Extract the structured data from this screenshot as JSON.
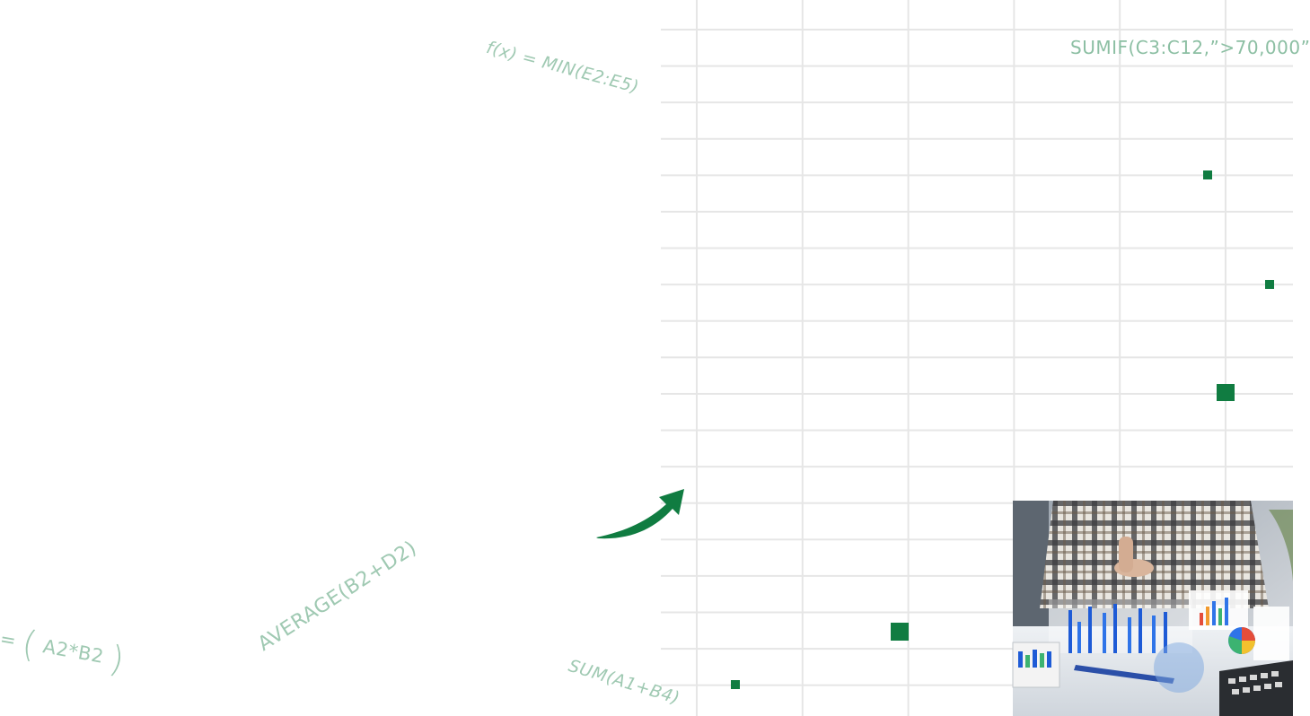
{
  "formulas": {
    "min": "f(x) = MIN(E2:E5)",
    "sumif": "SUMIF(C3:C12,”>70,000”",
    "average": "AVERAGE(B2+D2)",
    "sum": "SUM(A1+B4)",
    "mult_prefix": "=",
    "mult_open": "(",
    "mult_body": "A2*B2",
    "mult_close": ")"
  },
  "colors": {
    "accent": "#107c41",
    "formula": "#9fc9b2",
    "grid": "#e6e6e6"
  },
  "icons": {
    "arrow": "curved-arrow-icon"
  },
  "photo": {
    "subject": "person-analyzing-charts-photo"
  }
}
